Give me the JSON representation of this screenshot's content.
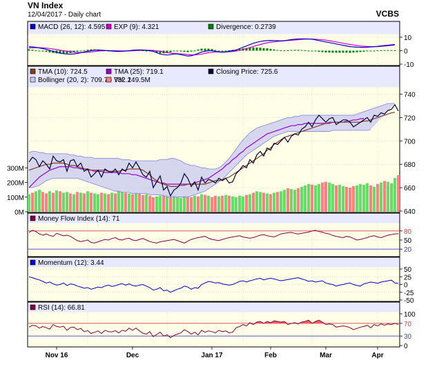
{
  "header": {
    "title": "VN Index",
    "subtitle": "12/04/2017 - Daily chart",
    "source": "VCBS"
  },
  "colors": {
    "panel_bg": "#ffffe8",
    "legend_bg": "#e8e8ff",
    "grid": "#c0c0c0",
    "macd": "#0000cc",
    "exp": "#cc00cc",
    "divergence": "#008000",
    "tma10": "#804020",
    "tma25": "#9900cc",
    "close": "#000033",
    "band_fill": "#c8c8f0",
    "band_line": "#8080e0",
    "vol_up": "#66dd66",
    "vol_down": "#ff8080",
    "mfi": "#800040",
    "momentum": "#0000cc",
    "rsi": "#800040",
    "rsi_fill": "#ff6060",
    "overbought": "#d04040",
    "oversold": "#4040d0"
  },
  "x_axis": {
    "labels": [
      "Nov 16",
      "Dec",
      "Jan 17",
      "Feb",
      "Mar",
      "Apr"
    ]
  },
  "chart_data": [
    {
      "type": "line",
      "name": "macd-panel",
      "legend": [
        {
          "label": "MACD (26, 12): 4.595",
          "color": "#0000cc"
        },
        {
          "label": "EXP (9): 4.321",
          "color": "#cc00cc"
        },
        {
          "label": "Divergence: 0.2739",
          "color": "#008000"
        }
      ],
      "y_ticks": [
        "10",
        "0",
        "-10"
      ],
      "ylim": [
        -10,
        12
      ],
      "grid": true,
      "macd": [
        3,
        2.8,
        2.5,
        2,
        1.5,
        1,
        0.3,
        -0.5,
        -1.2,
        -1.8,
        -2.2,
        -2.5,
        -2.6,
        -2.4,
        -2,
        -1.5,
        -1,
        -0.5,
        0,
        0.3,
        0.5,
        0.4,
        0.2,
        0,
        -0.3,
        -0.5,
        -0.6,
        -0.5,
        -0.3,
        0,
        0.3,
        0.5,
        0.6,
        0.5,
        0.3,
        0,
        -0.5,
        -1.5,
        -2.5,
        -3,
        -3.2,
        -3,
        -2.5,
        -2.5,
        -3,
        -3.5,
        -4,
        -3.8,
        -3,
        -2,
        -1,
        -0.5,
        0,
        0,
        -0.5,
        -1,
        -1.2,
        -1,
        -0.5,
        0,
        0.5,
        1.5,
        2.5,
        3.5,
        4.5,
        5.5,
        6.2,
        6.8,
        7.2,
        7.5,
        7.6,
        7.5,
        7.4,
        7.3,
        7.5,
        7.8,
        8.2,
        8.5,
        8.7,
        8.8,
        8.8,
        8.7,
        8.5,
        8,
        7.5,
        7,
        6.5,
        6,
        5.5,
        5,
        4.5,
        4,
        3.5,
        3,
        2.8,
        2.6,
        2.5,
        2.5,
        2.6,
        2.8,
        3,
        3.2,
        3.5,
        3.8,
        4,
        4.3,
        4.6
      ],
      "exp": [
        2,
        2.1,
        2.2,
        2.2,
        2.1,
        1.9,
        1.6,
        1.2,
        0.8,
        0.4,
        0,
        -0.4,
        -0.8,
        -1.1,
        -1.3,
        -1.4,
        -1.3,
        -1.2,
        -1,
        -0.7,
        -0.4,
        -0.2,
        0,
        0.1,
        0.1,
        0,
        -0.1,
        -0.2,
        -0.2,
        -0.2,
        -0.1,
        0,
        0.2,
        0.3,
        0.3,
        0.3,
        0.2,
        -0.1,
        -0.5,
        -1,
        -1.5,
        -1.8,
        -2,
        -2.2,
        -2.4,
        -2.6,
        -2.9,
        -3.1,
        -3.1,
        -2.9,
        -2.5,
        -2,
        -1.5,
        -1.2,
        -1,
        -0.9,
        -0.9,
        -0.9,
        -0.8,
        -0.6,
        -0.3,
        0.2,
        0.8,
        1.5,
        2.3,
        3.1,
        3.9,
        4.6,
        5.3,
        5.8,
        6.3,
        6.6,
        6.9,
        7.1,
        7.3,
        7.5,
        7.7,
        7.9,
        8.1,
        8.3,
        8.5,
        8.6,
        8.6,
        8.5,
        8.3,
        8.1,
        7.8,
        7.4,
        7,
        6.5,
        6,
        5.5,
        5,
        4.6,
        4.2,
        3.8,
        3.5,
        3.3,
        3.1,
        3,
        3,
        3,
        3.2,
        3.4,
        3.6,
        3.9,
        4.3
      ]
    },
    {
      "type": "line",
      "name": "price-panel",
      "legend": [
        {
          "label": "TMA (10): 724.5",
          "color": "#804020"
        },
        {
          "label": "TMA (25): 719.1",
          "color": "#9900cc"
        },
        {
          "label": "Closing Price: 725.6",
          "color": "#000033"
        },
        {
          "label": "Bollinger (20, 2): 709.7 - 732.1",
          "color": "#c8c8f0"
        },
        {
          "label": "Vol: 249.5M",
          "color": "#ff8080"
        }
      ],
      "y_ticks": [
        "740",
        "720",
        "700",
        "680",
        "660",
        "640"
      ],
      "ylim": [
        640,
        745
      ],
      "vol_ticks": [
        "300M",
        "200M",
        "100M",
        "0M"
      ],
      "vol_lim": [
        0,
        300
      ],
      "grid": true,
      "close": [
        682,
        686,
        684,
        678,
        683,
        680,
        676,
        687,
        683,
        682,
        684,
        674,
        683,
        684,
        678,
        681,
        674,
        676,
        669,
        672,
        675,
        669,
        676,
        674,
        673,
        676,
        671,
        676,
        674,
        681,
        677,
        682,
        677,
        671,
        669,
        674,
        660,
        665,
        670,
        658,
        661,
        653,
        658,
        660,
        664,
        672,
        668,
        661,
        665,
        658,
        669,
        664,
        667,
        666,
        664,
        668,
        666,
        668,
        664,
        665,
        672,
        675,
        679,
        677,
        684,
        681,
        688,
        691,
        687,
        694,
        692,
        698,
        697,
        700,
        703,
        699,
        704,
        706,
        705,
        710,
        712,
        716,
        712,
        718,
        722,
        719,
        716,
        719,
        720,
        714,
        716,
        718,
        718,
        716,
        712,
        714,
        716,
        718,
        720,
        716,
        722,
        721,
        724,
        723,
        726,
        727,
        731,
        725.6
      ],
      "tma10": [
        675,
        676,
        677,
        678,
        679,
        680,
        680,
        681,
        681,
        681,
        681,
        680,
        679,
        679,
        678,
        677,
        676,
        676,
        675,
        675,
        675,
        675,
        675,
        674,
        674,
        674,
        674,
        675,
        675,
        676,
        676,
        676,
        676,
        675,
        673,
        671,
        668,
        666,
        664,
        663,
        662,
        661,
        661,
        661,
        662,
        662,
        663,
        663,
        663,
        663,
        663,
        663,
        664,
        665,
        666,
        666,
        667,
        668,
        669,
        671,
        673,
        675,
        677,
        679,
        681,
        683,
        685,
        687,
        689,
        692,
        694,
        697,
        699,
        701,
        703,
        704,
        705,
        706,
        707,
        708,
        709,
        710,
        711,
        712,
        713,
        714,
        715,
        716,
        716,
        716,
        716,
        716,
        716,
        716,
        716,
        716,
        716,
        717,
        717,
        718,
        719,
        720,
        721,
        722,
        723,
        724,
        724.5
      ],
      "tma25": [
        660,
        663,
        666,
        669,
        671,
        673,
        675,
        676,
        677,
        678,
        678,
        678,
        678,
        677,
        677,
        676,
        676,
        675,
        675,
        674,
        674,
        674,
        673,
        673,
        673,
        673,
        673,
        672,
        672,
        672,
        671,
        671,
        670,
        669,
        668,
        667,
        666,
        665,
        664,
        664,
        663,
        663,
        663,
        663,
        663,
        663,
        663,
        663,
        664,
        665,
        666,
        667,
        668,
        670,
        672,
        674,
        676,
        679,
        681,
        684,
        686,
        689,
        691,
        694,
        696,
        698,
        700,
        702,
        704,
        706,
        707,
        708,
        709,
        710,
        711,
        712,
        713,
        713,
        714,
        714,
        715,
        715,
        715,
        715,
        715,
        715,
        715,
        715,
        716,
        716,
        716,
        716,
        717,
        717,
        718,
        718,
        719,
        719.1
      ],
      "bb_upper": [
        690,
        691,
        691,
        690,
        690,
        689,
        689,
        689,
        689,
        689,
        689,
        689,
        688,
        688,
        687,
        687,
        686,
        686,
        686,
        685,
        685,
        685,
        685,
        685,
        685,
        685,
        685,
        684,
        684,
        684,
        683,
        683,
        683,
        683,
        683,
        683,
        683,
        683,
        684,
        684,
        684,
        685,
        685,
        684,
        683,
        681,
        680,
        679,
        679,
        678,
        677,
        677,
        676,
        676,
        676,
        677,
        679,
        682,
        685,
        689,
        693,
        697,
        701,
        704,
        707,
        709,
        711,
        712,
        713,
        714,
        715,
        716,
        717,
        718,
        719,
        720,
        720,
        721,
        721,
        722,
        722,
        722,
        722,
        722,
        722,
        722,
        722,
        722,
        722,
        722,
        722,
        722,
        722,
        722,
        722,
        723,
        724,
        725,
        726,
        727,
        728,
        729,
        730,
        731,
        732,
        732,
        732.1
      ],
      "bb_lower": [
        660,
        660,
        661,
        662,
        664,
        666,
        667,
        668,
        668,
        668,
        668,
        668,
        668,
        668,
        668,
        667,
        666,
        665,
        664,
        663,
        662,
        661,
        660,
        659,
        658,
        657,
        657,
        656,
        656,
        656,
        655,
        655,
        655,
        655,
        655,
        654,
        654,
        654,
        654,
        653,
        652,
        652,
        652,
        652,
        652,
        652,
        652,
        653,
        654,
        655,
        656,
        657,
        659,
        661,
        663,
        665,
        667,
        670,
        673,
        676,
        679,
        682,
        685,
        688,
        690,
        692,
        694,
        696,
        698,
        700,
        702,
        704,
        705,
        706,
        707,
        708,
        708,
        708,
        708,
        708,
        708,
        708,
        708,
        708,
        708,
        708,
        708,
        708,
        709,
        709,
        709,
        709,
        709,
        709,
        709,
        709,
        709,
        709,
        709,
        709.7
      ],
      "volume": [
        120,
        130,
        140,
        150,
        135,
        125,
        140,
        130,
        145,
        140,
        130,
        135,
        125,
        120,
        135,
        130,
        125,
        140,
        130,
        125,
        120,
        130,
        125,
        120,
        130,
        125,
        140,
        135,
        130,
        125,
        120,
        130,
        125,
        115,
        120,
        110,
        100,
        105,
        110,
        120,
        115,
        105,
        110,
        100,
        95,
        110,
        105,
        100,
        110,
        105,
        120,
        115,
        110,
        100,
        110,
        105,
        110,
        115,
        110,
        105,
        100,
        110,
        105,
        115,
        120,
        130,
        140,
        135,
        130,
        125,
        120,
        130,
        135,
        140,
        150,
        160,
        155,
        150,
        160,
        170,
        180,
        190,
        185,
        180,
        190,
        200,
        205,
        200,
        190,
        180,
        185,
        175,
        170,
        165,
        175,
        180,
        190,
        185,
        195,
        180,
        170,
        190,
        200,
        210,
        205,
        195,
        230,
        249.5
      ],
      "vol_up": [
        1,
        0,
        1,
        1,
        0,
        0,
        1,
        0,
        1,
        0,
        1,
        1,
        0,
        1,
        0,
        1,
        0,
        1,
        0,
        1,
        1,
        0,
        1,
        0,
        1,
        0,
        1,
        1,
        0,
        1,
        0,
        1,
        0,
        0,
        1,
        0,
        0,
        1,
        1,
        0,
        1,
        0,
        1,
        1,
        1,
        1,
        0,
        0,
        1,
        0,
        1,
        0,
        1,
        0,
        0,
        1,
        0,
        1,
        0,
        1,
        1,
        1,
        1,
        0,
        1,
        0,
        1,
        1,
        0,
        1,
        0,
        1,
        0,
        1,
        1,
        0,
        1,
        1,
        0,
        1,
        1,
        1,
        0,
        1,
        1,
        0,
        0,
        1,
        1,
        0,
        1,
        1,
        0,
        0,
        0,
        1,
        1,
        1,
        1,
        0,
        1,
        0,
        1,
        0,
        1,
        1,
        1,
        0
      ]
    },
    {
      "type": "line",
      "name": "mfi-panel",
      "legend": [
        {
          "label": "Money Flow Index (14): 71",
          "color": "#800040"
        }
      ],
      "y_ticks": [
        "80",
        "50",
        "20"
      ],
      "ylim": [
        0,
        100
      ],
      "levels": [
        80,
        20
      ],
      "values": [
        75,
        82,
        78,
        70,
        66,
        70,
        65,
        62,
        72,
        68,
        64,
        66,
        62,
        55,
        48,
        45,
        47,
        50,
        42,
        40,
        44,
        48,
        52,
        50,
        55,
        58,
        52,
        50,
        54,
        56,
        50,
        48,
        52,
        55,
        50,
        45,
        42,
        40,
        44,
        46,
        48,
        50,
        52,
        48,
        44,
        40,
        46,
        52,
        55,
        58,
        60,
        62,
        56,
        52,
        50,
        48,
        52,
        55,
        58,
        60,
        62,
        64,
        60,
        58,
        56,
        58,
        62,
        66,
        68,
        64,
        62,
        60,
        65,
        70,
        72,
        74,
        75,
        72,
        70,
        72,
        74,
        76,
        80,
        82,
        78,
        76,
        72,
        70,
        65,
        62,
        60,
        58,
        62,
        60,
        55,
        50,
        52,
        55,
        58,
        62,
        64,
        60,
        58,
        62,
        66,
        68,
        70,
        71
      ]
    },
    {
      "type": "line",
      "name": "momentum-panel",
      "legend": [
        {
          "label": "Momentum (12): 3.44",
          "color": "#0000cc"
        }
      ],
      "y_ticks": [
        "50",
        "25",
        "0",
        "-25",
        "-50"
      ],
      "ylim": [
        -50,
        50
      ],
      "values": [
        25,
        22,
        18,
        15,
        10,
        5,
        8,
        2,
        -2,
        0,
        5,
        -3,
        2,
        0,
        -5,
        -8,
        -12,
        -10,
        -15,
        -12,
        -8,
        -10,
        -5,
        -2,
        -6,
        -4,
        0,
        3,
        -2,
        2,
        -3,
        -5,
        -2,
        0,
        -5,
        -10,
        -18,
        -15,
        -10,
        -20,
        -18,
        -25,
        -20,
        -15,
        -12,
        -5,
        -8,
        -15,
        -10,
        -12,
        0,
        5,
        10,
        8,
        5,
        6,
        2,
        0,
        -2,
        0,
        5,
        10,
        12,
        8,
        12,
        15,
        18,
        20,
        15,
        18,
        20,
        18,
        15,
        12,
        14,
        16,
        18,
        20,
        22,
        18,
        15,
        10,
        12,
        8,
        10,
        12,
        5,
        2,
        0,
        -5,
        -2,
        0,
        3,
        5,
        0,
        -3,
        -5,
        2,
        5,
        8,
        6,
        4,
        8,
        10,
        12,
        14,
        5,
        3.44
      ]
    },
    {
      "type": "line",
      "name": "rsi-panel",
      "legend": [
        {
          "label": "RSI (14): 66.81",
          "color": "#800040"
        }
      ],
      "y_ticks": [
        "100",
        "70",
        "30",
        "0"
      ],
      "ylim": [
        0,
        100
      ],
      "levels": [
        70,
        30
      ],
      "values": [
        58,
        64,
        62,
        55,
        60,
        56,
        52,
        66,
        60,
        58,
        61,
        48,
        57,
        58,
        50,
        54,
        44,
        47,
        38,
        42,
        46,
        38,
        48,
        44,
        43,
        47,
        40,
        48,
        45,
        55,
        48,
        55,
        46,
        39,
        36,
        44,
        28,
        35,
        42,
        30,
        34,
        25,
        32,
        36,
        40,
        50,
        44,
        36,
        42,
        34,
        48,
        42,
        46,
        44,
        40,
        48,
        44,
        46,
        40,
        42,
        56,
        60,
        66,
        62,
        72,
        66,
        74,
        76,
        70,
        76,
        72,
        78,
        76,
        74,
        76,
        66,
        70,
        72,
        68,
        74,
        76,
        80,
        70,
        76,
        80,
        74,
        66,
        68,
        66,
        58,
        60,
        62,
        60,
        56,
        50,
        54,
        58,
        60,
        64,
        56,
        66,
        62,
        68,
        64,
        68,
        66,
        70,
        66.81
      ]
    }
  ]
}
